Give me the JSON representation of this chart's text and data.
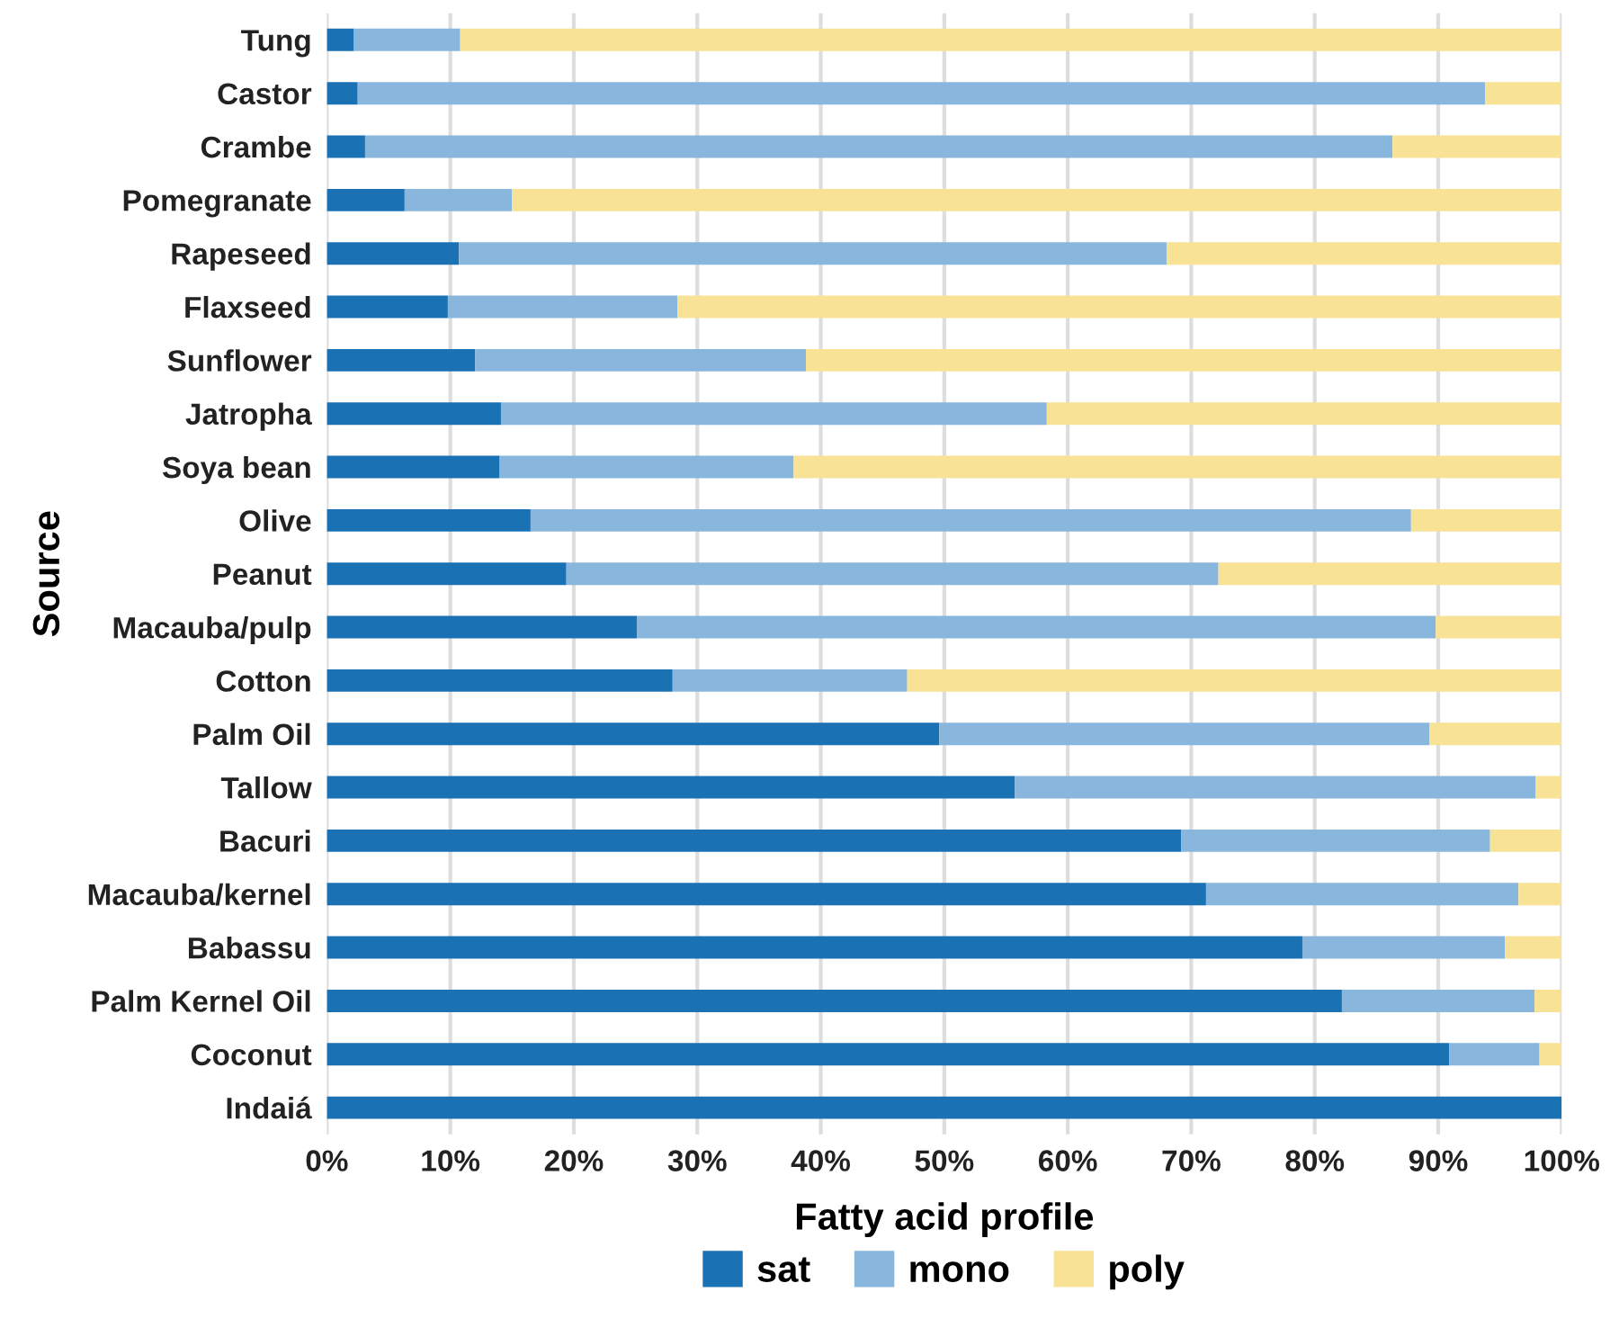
{
  "chart_data": {
    "type": "bar",
    "orientation": "horizontal",
    "stacked": true,
    "xlabel": "Fatty acid profile",
    "ylabel": "Source",
    "categories": [
      "Tung",
      "Castor",
      "Crambe",
      "Pomegranate",
      "Rapeseed",
      "Flaxseed",
      "Sunflower",
      "Jatropha",
      "Soya bean",
      "Olive",
      "Peanut",
      "Macauba/pulp",
      "Cotton",
      "Palm Oil",
      "Tallow",
      "Bacuri",
      "Macauba/kernel",
      "Babassu",
      "Palm Kernel Oil",
      "Coconut",
      "Indaiá"
    ],
    "series": [
      {
        "name": "sat",
        "color": "#1a72b4",
        "values": [
          2.2,
          2.5,
          3.1,
          6.3,
          10.7,
          9.8,
          12,
          14.1,
          14,
          16.5,
          19.4,
          25.1,
          28,
          49.6,
          55.7,
          69.2,
          71.2,
          79,
          82.2,
          90.9,
          100
        ]
      },
      {
        "name": "mono",
        "color": "#88b6dc",
        "values": [
          8.6,
          91.3,
          83.2,
          8.7,
          57.3,
          18.6,
          26.8,
          44.2,
          23.8,
          71.3,
          52.8,
          64.7,
          19,
          39.7,
          42.2,
          25,
          25.3,
          16.4,
          15.6,
          7.3,
          0
        ]
      },
      {
        "name": "poly",
        "color": "#f8e295",
        "values": [
          89.2,
          6.2,
          13.7,
          85,
          32,
          71.6,
          61.2,
          41.7,
          62.2,
          12.2,
          27.8,
          10.2,
          53,
          10.7,
          2.1,
          5.8,
          3.5,
          4.6,
          2.2,
          1.8,
          0
        ]
      }
    ],
    "xlim": [
      0,
      100
    ],
    "xticks": [
      {
        "value": 0,
        "label": "0%"
      },
      {
        "value": 10,
        "label": "10%"
      },
      {
        "value": 20,
        "label": "20%"
      },
      {
        "value": 30,
        "label": "30%"
      },
      {
        "value": 40,
        "label": "40%"
      },
      {
        "value": 50,
        "label": "50%"
      },
      {
        "value": 60,
        "label": "60%"
      },
      {
        "value": 70,
        "label": "70%"
      },
      {
        "value": 80,
        "label": "80%"
      },
      {
        "value": 90,
        "label": "90%"
      },
      {
        "value": 100,
        "label": "100%"
      }
    ],
    "grid": "x",
    "legend": "bottom"
  }
}
